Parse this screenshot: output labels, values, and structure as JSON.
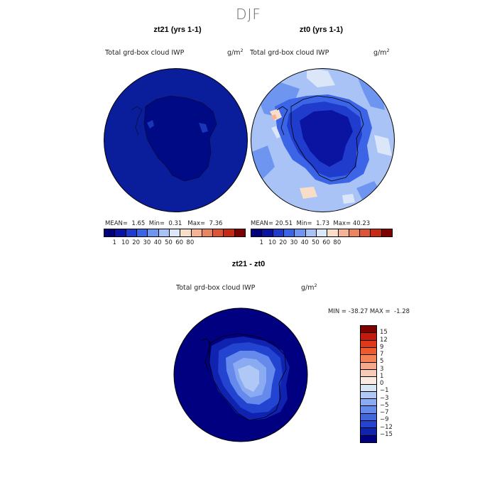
{
  "season": "DJF",
  "panels": [
    {
      "title": "zt21 (yrs 1-1)",
      "variable": "Total grd-box cloud IWP",
      "units_base": "g/m",
      "units_exp": "2",
      "mean_label": "MEAN=",
      "mean": "1.65",
      "min_label": "Min=",
      "min": "0.31",
      "max_label": "Max=",
      "max": "7.36"
    },
    {
      "title": "zt0 (yrs 1-1)",
      "variable": "Total grd-box cloud IWP",
      "units_base": "g/m",
      "units_exp": "2",
      "mean_label": "MEAN=",
      "mean": "20.51",
      "min_label": "Min=",
      "min": "1.73",
      "max_label": "Max=",
      "max": "40.23"
    }
  ],
  "abs_colorbar": {
    "colors": [
      "#00007f",
      "#0a14a0",
      "#1f3ccc",
      "#3c64e6",
      "#6e96f0",
      "#a9c3f7",
      "#dbe6f8",
      "#f8ddc9",
      "#f3b394",
      "#eb855f",
      "#dd5536",
      "#c62a14",
      "#7f0000"
    ],
    "tick_labels": [
      "1",
      "10",
      "20",
      "30",
      "40",
      "50",
      "60",
      "80"
    ],
    "tick_positions": [
      1,
      2,
      3,
      4,
      5,
      6,
      7,
      8
    ]
  },
  "diff_panel": {
    "title": "zt21 - zt0",
    "variable": "Total grd-box cloud IWP",
    "units_base": "g/m",
    "units_exp": "2",
    "min_label": "MIN =",
    "min": "-38.27",
    "max_label": "MAX =",
    "max": "-1.28"
  },
  "diff_colorbar": {
    "colors_top_to_bottom": [
      "#7f0000",
      "#c41a0c",
      "#e0381a",
      "#ee5a2c",
      "#f38255",
      "#f6a98a",
      "#f8cbb6",
      "#faeae0",
      "#d8e5f7",
      "#b0c8f5",
      "#8aabf2",
      "#6689ec",
      "#4166e0",
      "#2244d0",
      "#0f22b0",
      "#000080"
    ],
    "labels": [
      "15",
      "12",
      "9",
      "7",
      "5",
      "3",
      "1",
      "0",
      "−1",
      "−3",
      "−5",
      "−7",
      "−9",
      "−12",
      "−15"
    ]
  }
}
